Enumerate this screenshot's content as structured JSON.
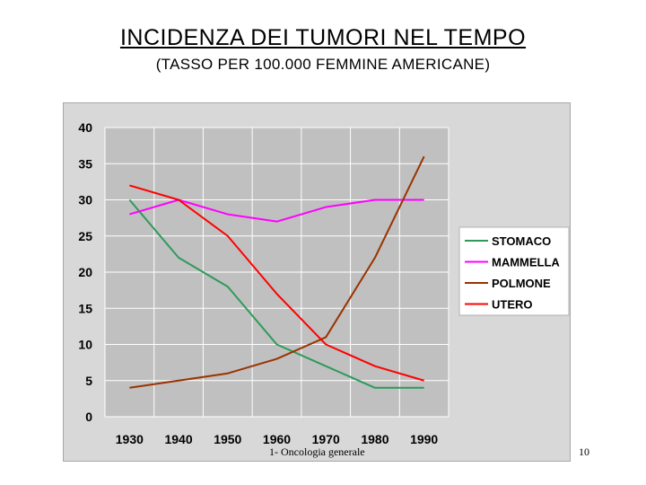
{
  "slide": {
    "title": "INCIDENZA  DEI  TUMORI  NEL  TEMPO",
    "subtitle": "(TASSO  PER  100.000  FEMMINE  AMERICANE)",
    "footer": "1- Oncologia generale",
    "page_number": "10"
  },
  "colors": {
    "panel_bg": "#d8d8d8",
    "plot_bg": "#c0c0c0",
    "gridline": "#ffffff"
  },
  "chart_data": {
    "type": "line",
    "title": "",
    "xlabel": "",
    "ylabel": "",
    "categories": [
      "1930",
      "1940",
      "1950",
      "1960",
      "1970",
      "1980",
      "1990"
    ],
    "ylim": [
      0,
      40
    ],
    "yticks": [
      0,
      5,
      10,
      15,
      20,
      25,
      30,
      35,
      40
    ],
    "grid": true,
    "legend_position": "right",
    "series": [
      {
        "name": "STOMACO",
        "color": "#2e9a5a",
        "values": [
          30,
          22,
          18,
          10,
          7,
          4,
          4
        ]
      },
      {
        "name": "MAMMELLA",
        "color": "#ff00ff",
        "values": [
          28,
          30,
          28,
          27,
          29,
          30,
          30
        ]
      },
      {
        "name": "POLMONE",
        "color": "#993300",
        "values": [
          4,
          5,
          6,
          8,
          11,
          22,
          36
        ]
      },
      {
        "name": "UTERO",
        "color": "#ff0000",
        "values": [
          32,
          30,
          25,
          17,
          10,
          7,
          5
        ]
      }
    ]
  }
}
